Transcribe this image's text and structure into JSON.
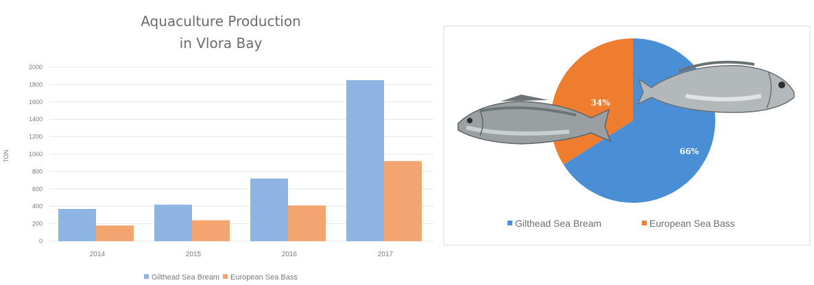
{
  "chart_data": [
    {
      "type": "bar",
      "title_lines": [
        "Aquaculture Production",
        "in Vlora Bay"
      ],
      "ylabel": "TON",
      "xlabel": "",
      "ylim": [
        0,
        2000
      ],
      "yticks": [
        "0",
        "200",
        "400",
        "600",
        "800",
        "1000",
        "1200",
        "1400",
        "1600",
        "1800",
        "2000"
      ],
      "categories": [
        "2014",
        "2015",
        "2016",
        "2017"
      ],
      "series": [
        {
          "name": "Gilthead Sea Bream",
          "color": "#8db4e2",
          "values": [
            370,
            420,
            720,
            1850
          ]
        },
        {
          "name": "European Sea Bass",
          "color": "#f4a56f",
          "values": [
            180,
            240,
            410,
            920
          ]
        }
      ],
      "grid": true,
      "legend_position": "bottom"
    },
    {
      "type": "pie",
      "slices": [
        {
          "name": "Gilthead Sea Bream",
          "value": 66,
          "label": "66%",
          "color": "#4a8fd6"
        },
        {
          "name": "European Sea Bass",
          "value": 34,
          "label": "34%",
          "color": "#ee7d30"
        }
      ],
      "legend_position": "bottom",
      "legend": [
        "Gilthead Sea Bream",
        "European Sea Bass"
      ]
    }
  ],
  "icons": [
    "sea-bass-fish-image",
    "sea-bream-fish-image"
  ]
}
